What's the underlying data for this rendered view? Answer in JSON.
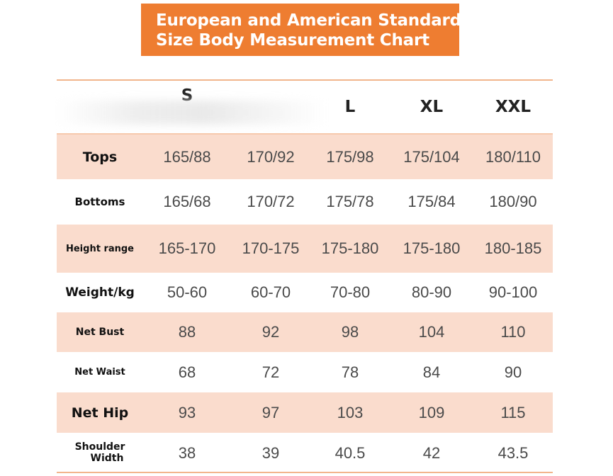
{
  "title": {
    "line1": "European and American Standard",
    "line2": "Size Body Measurement Chart"
  },
  "colors": {
    "title_background": "#ee7d31",
    "shaded_row": "#fadccd",
    "rule": "#f2b58c"
  },
  "table": {
    "sizes": [
      "S",
      "",
      "L",
      "XL",
      "XXL"
    ],
    "rows": [
      {
        "label": "Tops",
        "values": [
          "165/88",
          "170/92",
          "175/98",
          "175/104",
          "180/110"
        ]
      },
      {
        "label": "Bottoms",
        "values": [
          "165/68",
          "170/72",
          "175/78",
          "175/84",
          "180/90"
        ]
      },
      {
        "label": "Height range",
        "values": [
          "165-170",
          "170-175",
          "175-180",
          "175-180",
          "180-185"
        ]
      },
      {
        "label": "Weight/kg",
        "values": [
          "50-60",
          "60-70",
          "70-80",
          "80-90",
          "90-100"
        ]
      },
      {
        "label": "Net Bust",
        "values": [
          "88",
          "92",
          "98",
          "104",
          "110"
        ]
      },
      {
        "label": "Net Waist",
        "values": [
          "68",
          "72",
          "78",
          "84",
          "90"
        ]
      },
      {
        "label": "Net Hip",
        "values": [
          "93",
          "97",
          "103",
          "109",
          "115"
        ]
      },
      {
        "label_line1": "Shoulder",
        "label_line2": "Width",
        "values": [
          "38",
          "39",
          "40.5",
          "42",
          "43.5"
        ]
      }
    ]
  }
}
